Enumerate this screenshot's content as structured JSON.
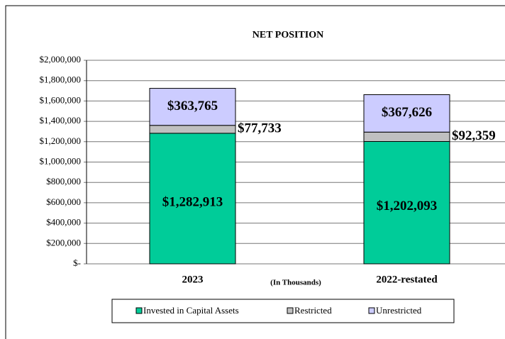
{
  "chart_data": {
    "type": "stacked_bar",
    "title": "NET POSITION",
    "x_label": "(In Thousands)",
    "categories": [
      "2023",
      "2022-restated"
    ],
    "series": [
      {
        "name": "Invested in Capital Assets",
        "color": "#00cc99",
        "values": [
          1282913,
          1202093
        ],
        "value_labels": [
          "$1,282,913",
          "$1,202,093"
        ]
      },
      {
        "name": "Restricted",
        "color": "#c0c0c0",
        "values": [
          77733,
          92359
        ],
        "value_labels": [
          "$77,733",
          "$92,359"
        ]
      },
      {
        "name": "Unrestricted",
        "color": "#ccccff",
        "values": [
          363765,
          367626
        ],
        "value_labels": [
          "$363,765",
          "$367,626"
        ]
      }
    ],
    "ylim": [
      0,
      2000000
    ],
    "yticks": [
      {
        "value": 0,
        "label": "$-"
      },
      {
        "value": 200000,
        "label": "$200,000"
      },
      {
        "value": 400000,
        "label": "$400,000"
      },
      {
        "value": 600000,
        "label": "$600,000"
      },
      {
        "value": 800000,
        "label": "$800,000"
      },
      {
        "value": 1000000,
        "label": "$1,000,000"
      },
      {
        "value": 1200000,
        "label": "$1,200,000"
      },
      {
        "value": 1400000,
        "label": "$1,400,000"
      },
      {
        "value": 1600000,
        "label": "$1,600,000"
      },
      {
        "value": 1800000,
        "label": "$1,800,000"
      },
      {
        "value": 2000000,
        "label": "$2,000,000"
      }
    ],
    "grid": true,
    "legend": "bottom"
  }
}
